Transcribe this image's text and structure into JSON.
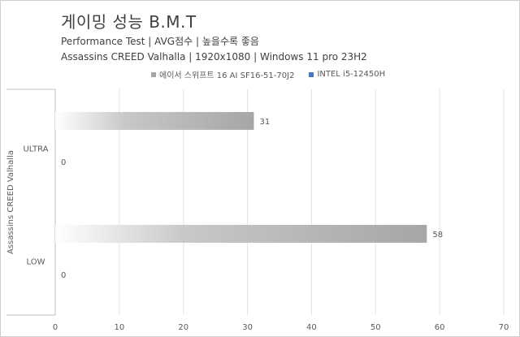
{
  "chart_data": {
    "type": "bar",
    "orientation": "horizontal",
    "title": "게이밍 성능 B.M.T",
    "subtitle_lines": [
      "Performance Test | AVG점수 | 높을수록 좋음",
      "Assassins CREED Valhalla | 1920x1080 | Windows 11 pro 23H2"
    ],
    "ylabel": "Assassins CREED Valhalla",
    "xlabel": "",
    "categories": [
      "ULTRA",
      "LOW"
    ],
    "series": [
      {
        "name": "에이서 스위프트 16 AI SF16-51-70J2",
        "values": [
          31,
          58
        ],
        "color": "#a6a6a6"
      },
      {
        "name": "INTEL i5-12450H",
        "values": [
          0,
          0
        ],
        "color": "#4a78c2"
      }
    ],
    "xlim": [
      0,
      70
    ],
    "xticks": [
      0,
      10,
      20,
      30,
      40,
      50,
      60,
      70
    ],
    "grid": true,
    "legend_position": "top"
  }
}
